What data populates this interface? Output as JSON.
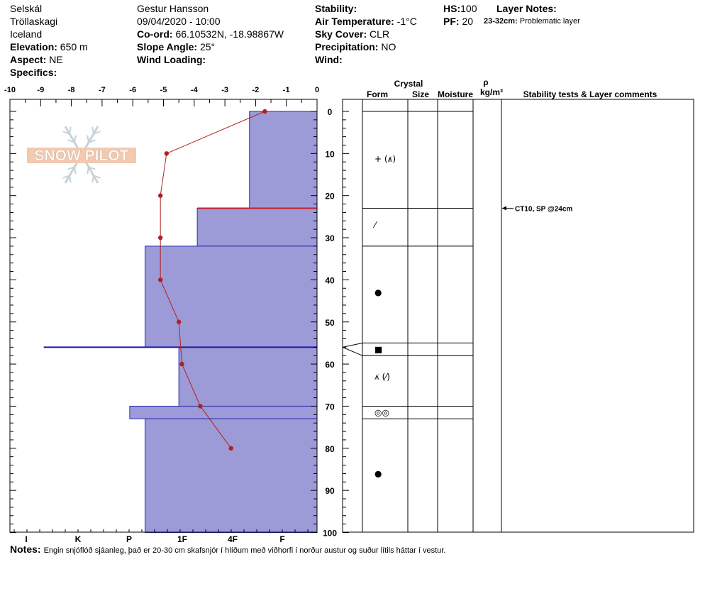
{
  "header": {
    "location": "Selskál",
    "region": "Tröllaskagi",
    "country": "Iceland",
    "elevation_label": "Elevation:",
    "elevation_value": "650 m",
    "aspect_label": "Aspect:",
    "aspect_value": "NE",
    "specifics_label": "Specifics:",
    "observer": "Gestur Hansson",
    "datetime": "09/04/2020 - 10:00",
    "coord_label": "Co-ord:",
    "coord_value": "66.10532N, -18.98867W",
    "slope_label": "Slope Angle:",
    "slope_value": "25°",
    "wind_loading_label": "Wind Loading:",
    "stability_label": "Stability:",
    "air_temp_label": "Air Temperature:",
    "air_temp_value": "-1°C",
    "sky_label": "Sky Cover:",
    "sky_value": "CLR",
    "precip_label": "Precipitation:",
    "precip_value": "NO",
    "wind_label": "Wind:",
    "hs_label": "HS:",
    "hs_value": "100",
    "pf_label": "PF:",
    "pf_value": "20",
    "layer_notes_label": "Layer Notes:",
    "layer_note_range": "23-32cm:",
    "layer_note_text": "Problematic layer"
  },
  "watermark": "SNOW PILOT",
  "columns": {
    "crystal": "Crystal",
    "form": "Form",
    "size": "Size",
    "moisture": "Moisture",
    "rho": "ρ",
    "density_unit": "kg/m³",
    "stability": "Stability tests & Layer comments"
  },
  "notes": {
    "label": "Notes:",
    "text": "Engin snjóflóð sjáanleg, það er 20-30 cm skafsnjór í hlíðum með viðhorfi í norður austur og suður lítils háttar í vestur."
  },
  "chart_data": {
    "type": "snow-profile",
    "temperature_axis": {
      "ticks": [
        "-10",
        "-9",
        "-8",
        "-7",
        "-6",
        "-5",
        "-4",
        "-3",
        "-2",
        "-1",
        "0"
      ],
      "range": [
        -10,
        0
      ]
    },
    "depth_axis": {
      "ticks": [
        "0",
        "10",
        "20",
        "30",
        "40",
        "50",
        "60",
        "70",
        "80",
        "90",
        "100"
      ],
      "range": [
        0,
        100
      ]
    },
    "hardness_axis": {
      "labels": [
        "I",
        "K",
        "P",
        "1F",
        "4F",
        "F"
      ]
    },
    "temperature_profile": [
      {
        "depth": 0,
        "temp": -1.7
      },
      {
        "depth": 10,
        "temp": -4.9
      },
      {
        "depth": 20,
        "temp": -5.1
      },
      {
        "depth": 30,
        "temp": -5.1
      },
      {
        "depth": 40,
        "temp": -5.1
      },
      {
        "depth": 50,
        "temp": -4.5
      },
      {
        "depth": 60,
        "temp": -4.4
      },
      {
        "depth": 70,
        "temp": -3.8
      },
      {
        "depth": 80,
        "temp": -2.8
      }
    ],
    "hardness_layers": [
      {
        "top": 0,
        "bottom": 23,
        "hardness_x": -2.2
      },
      {
        "top": 23,
        "bottom": 32,
        "hardness_x": -3.9
      },
      {
        "top": 32,
        "bottom": 56,
        "hardness_x": -5.6
      },
      {
        "top": 56,
        "bottom": 70,
        "hardness_x": -4.5
      },
      {
        "top": 70,
        "bottom": 73,
        "hardness_x": -6.1
      },
      {
        "top": 73,
        "bottom": 100,
        "hardness_x": -5.6
      }
    ],
    "interfaces": [
      {
        "depth": 23,
        "color": "#c0202c"
      },
      {
        "depth": 56,
        "color": "#1a1aa0",
        "extends_to": -8.9
      }
    ],
    "layer_boundaries": [
      0,
      23,
      32,
      55,
      58,
      70,
      73
    ],
    "crystal_forms": [
      {
        "depth": 11.3,
        "symbol": "+ (⩚̈)"
      },
      {
        "depth": 27,
        "symbol": "⁄"
      },
      {
        "depth": 43,
        "symbol": "●"
      },
      {
        "depth": 56.5,
        "symbol": "■"
      },
      {
        "depth": 63,
        "symbol": "⩚̈ (⁄)"
      },
      {
        "depth": 71.5,
        "symbol": "◎◎"
      },
      {
        "depth": 86,
        "symbol": "●"
      }
    ],
    "stability_tests": [
      {
        "depth": 24,
        "text": "CT10, SP @24cm"
      }
    ]
  },
  "colors": {
    "hardness_fill": "#9d9bd7",
    "hardness_edge": "#2a2ab0",
    "temp_line": "#b02020"
  }
}
